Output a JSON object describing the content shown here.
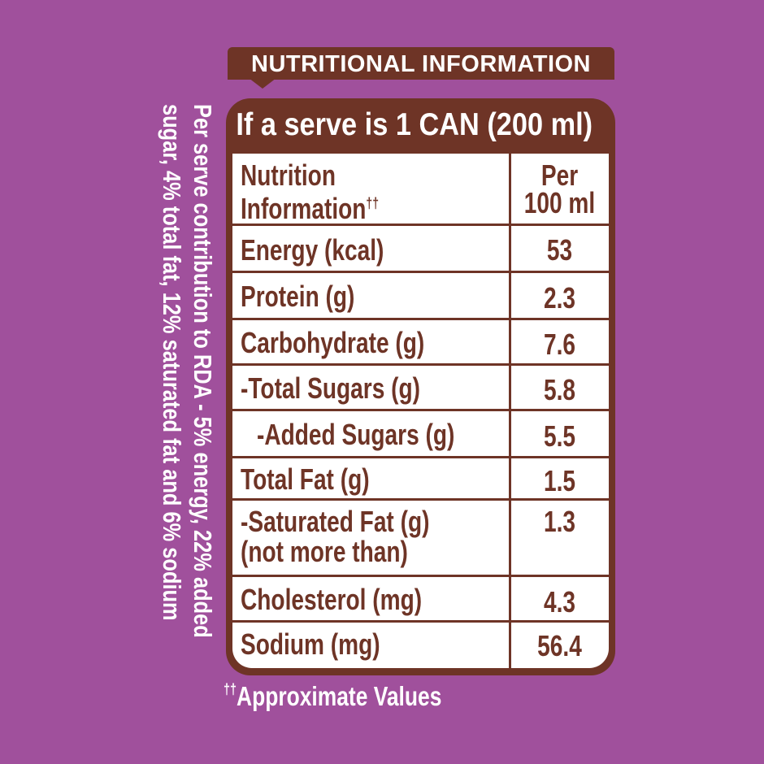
{
  "banner": {
    "title": "NUTRITIONAL INFORMATION"
  },
  "panel": {
    "serve_header": "If a serve is 1 CAN (200 ml)"
  },
  "table": {
    "header": {
      "label_line1": "Nutrition",
      "label_line2": "Information",
      "label_mark": "††",
      "value_line1": "Per",
      "value_line2": "100 ml"
    },
    "rows": [
      {
        "label": "Energy (kcal)",
        "value": "53"
      },
      {
        "label": "Protein (g)",
        "value": "2.3"
      },
      {
        "label": "Carbohydrate (g)",
        "value": "7.6"
      },
      {
        "label": "-Total Sugars (g)",
        "value": "5.8"
      },
      {
        "label": "-Added Sugars (g)",
        "value": "5.5"
      },
      {
        "label": "Total Fat (g)",
        "value": "1.5"
      },
      {
        "label": "-Saturated Fat (g)",
        "label_line2": "(not more than)",
        "value": "1.3"
      },
      {
        "label": "Cholesterol (mg)",
        "value": "4.3"
      },
      {
        "label": "Sodium (mg)",
        "value": "56.4"
      }
    ]
  },
  "side_note": {
    "line1": "Per serve contribution to RDA - 5% energy, 22% added",
    "line2": "sugar, 4% total fat, 12% saturated fat and 6% sodium"
  },
  "footnote": {
    "mark": "††",
    "text": "Approximate Values"
  },
  "colors": {
    "background": "#a0509c",
    "brown": "#6e3426",
    "table_bg": "#ffffff"
  }
}
